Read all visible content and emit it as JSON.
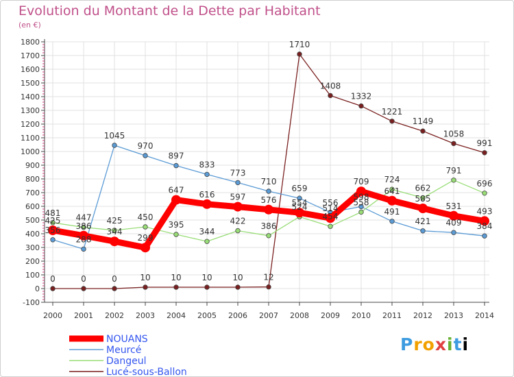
{
  "title": "Evolution du Montant de la Dette par Habitant",
  "unit": "(en €)",
  "logo": {
    "letters": [
      "P",
      "r",
      "o",
      "x",
      "i",
      "t",
      "i"
    ]
  },
  "colors": {
    "background": "#ffffff",
    "title": "#c0508a",
    "axis": "#444444",
    "grid": "#e0e0e0",
    "nouans": "#ff0000",
    "meurce": "#5b9bd5",
    "dangeul": "#99dd77",
    "luce": "#7a1f1f"
  },
  "chart_data": {
    "type": "line",
    "title": "Evolution du Montant de la Dette par Habitant",
    "ylabel": "(en €)",
    "ylim": [
      -100,
      1800
    ],
    "yticks": [
      -100,
      0,
      100,
      200,
      300,
      400,
      500,
      600,
      700,
      800,
      900,
      1000,
      1100,
      1200,
      1300,
      1400,
      1500,
      1600,
      1700,
      1800
    ],
    "x": [
      "2000",
      "2001",
      "2002",
      "2003",
      "2004",
      "2005",
      "2006",
      "2007",
      "2008",
      "2009",
      "2010",
      "2011",
      "2012",
      "2013",
      "2014"
    ],
    "grid": true,
    "legend": "bottom-left",
    "series": [
      {
        "name": "NOUANS",
        "color": "#ff0000",
        "values": [
          425,
          386,
          344,
          299,
          647,
          616,
          597,
          576,
          554,
          514,
          709,
          641,
          585,
          531,
          493
        ],
        "labels": [
          "425",
          "386",
          "344",
          "299",
          "647",
          "616",
          "597",
          "576",
          "554",
          "514",
          "709",
          "641",
          "585",
          "531",
          "493"
        ]
      },
      {
        "name": "Meurcé",
        "color": "#5b9bd5",
        "values": [
          356,
          288,
          1045,
          970,
          897,
          833,
          773,
          710,
          659,
          556,
          598,
          491,
          421,
          409,
          384
        ],
        "labels": [
          "356",
          "288",
          "1045",
          "970",
          "897",
          "833",
          "773",
          "710",
          "659",
          "556",
          "598",
          "491",
          "421",
          "409",
          "384"
        ]
      },
      {
        "name": "Dangeul",
        "color": "#99dd77",
        "values": [
          481,
          447,
          425,
          450,
          395,
          344,
          422,
          386,
          524,
          454,
          558,
          724,
          662,
          791,
          696
        ],
        "labels": [
          "481",
          "447",
          "425",
          "450",
          "395",
          "344",
          "422",
          "386",
          "524",
          "454",
          "558",
          "724",
          "662",
          "791",
          "696"
        ]
      },
      {
        "name": "Lucé-sous-Ballon",
        "color": "#7a1f1f",
        "values": [
          0,
          0,
          0,
          10,
          10,
          10,
          10,
          12,
          1710,
          1408,
          1332,
          1221,
          1149,
          1058,
          991
        ],
        "labels": [
          "0",
          "0",
          "0",
          "10",
          "10",
          "10",
          "10",
          "12",
          "1710",
          "1408",
          "1332",
          "1221",
          "1149",
          "1058",
          "991"
        ]
      }
    ]
  }
}
